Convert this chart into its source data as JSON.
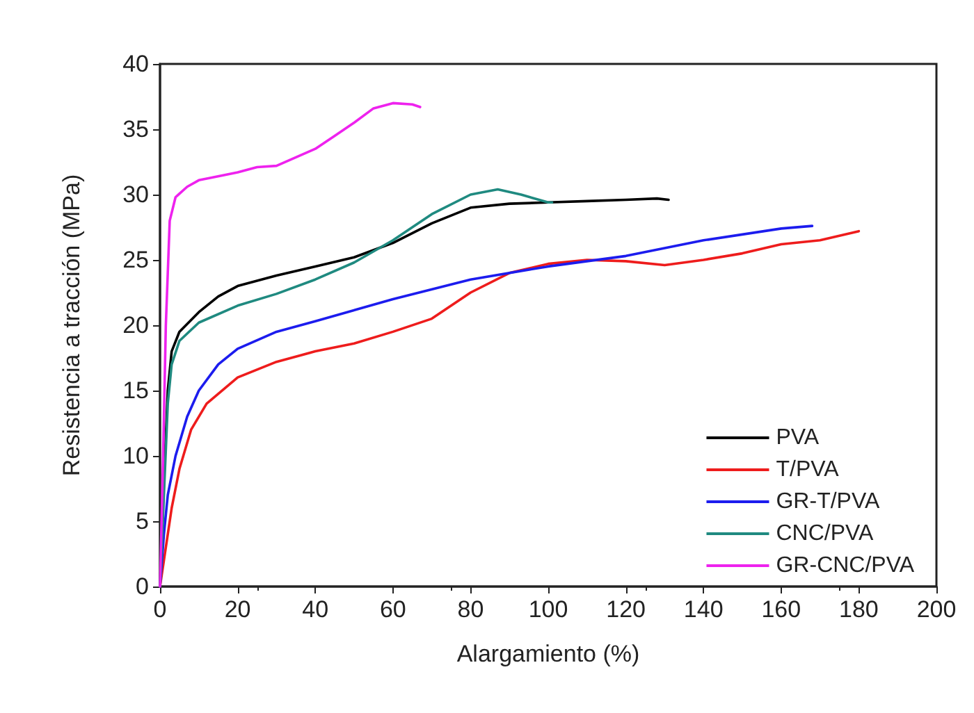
{
  "chart_data": {
    "type": "line",
    "xlabel": "Alargamiento (%)",
    "ylabel": "Resistencia a tracción (MPa)",
    "xlim": [
      0,
      200
    ],
    "xticks": [
      0,
      20,
      40,
      60,
      80,
      100,
      120,
      140,
      160,
      180,
      200
    ],
    "ylim": [
      0,
      40
    ],
    "yticks": [
      0,
      5,
      10,
      15,
      20,
      25,
      30,
      35,
      40
    ],
    "grid": false,
    "legend": "bottom right",
    "marker": "none",
    "line_style": "solid",
    "series": [
      {
        "name": "PVA",
        "color": "#000000",
        "x": [
          0,
          1,
          2,
          3,
          5,
          10,
          15,
          20,
          30,
          40,
          50,
          60,
          70,
          80,
          90,
          100,
          110,
          120,
          128,
          131
        ],
        "values": [
          0,
          8,
          15,
          18,
          19.5,
          21,
          22.2,
          23,
          23.8,
          24.5,
          25.2,
          26.3,
          27.8,
          29,
          29.3,
          29.4,
          29.5,
          29.6,
          29.7,
          29.6
        ]
      },
      {
        "name": "T/PVA",
        "color": "#ee1c1c",
        "x": [
          0,
          1,
          3,
          5,
          8,
          12,
          20,
          30,
          40,
          50,
          60,
          70,
          80,
          90,
          100,
          110,
          120,
          130,
          140,
          150,
          160,
          170,
          180
        ],
        "values": [
          0,
          2,
          6,
          9,
          12,
          14,
          16,
          17.2,
          18,
          18.6,
          19.5,
          20.5,
          22.5,
          24,
          24.7,
          25,
          24.9,
          24.6,
          25,
          25.5,
          26.2,
          26.5,
          27.2
        ]
      },
      {
        "name": "GR-T/PVA",
        "color": "#1c1cee",
        "x": [
          0,
          1,
          2,
          4,
          7,
          10,
          15,
          20,
          30,
          40,
          60,
          80,
          100,
          120,
          140,
          160,
          168
        ],
        "values": [
          0,
          4,
          7,
          10,
          13,
          15,
          17,
          18.2,
          19.5,
          20.3,
          22,
          23.5,
          24.5,
          25.3,
          26.5,
          27.4,
          27.6
        ]
      },
      {
        "name": "CNC/PVA",
        "color": "#1f8a80",
        "x": [
          0,
          1,
          2,
          3,
          5,
          10,
          20,
          30,
          40,
          50,
          60,
          70,
          80,
          87,
          93,
          100,
          101
        ],
        "values": [
          0,
          7,
          14,
          17,
          18.8,
          20.2,
          21.5,
          22.4,
          23.5,
          24.8,
          26.5,
          28.5,
          30,
          30.4,
          30,
          29.4,
          29.4
        ]
      },
      {
        "name": "GR-CNC/PVA",
        "color": "#ee22ee",
        "x": [
          0,
          0.8,
          1.5,
          2.5,
          4,
          7,
          10,
          20,
          25,
          30,
          40,
          45,
          50,
          55,
          60,
          65,
          67
        ],
        "values": [
          0,
          10,
          20,
          28,
          29.8,
          30.6,
          31.1,
          31.7,
          32.1,
          32.2,
          33.5,
          34.5,
          35.5,
          36.6,
          37,
          36.9,
          36.7
        ]
      }
    ]
  }
}
